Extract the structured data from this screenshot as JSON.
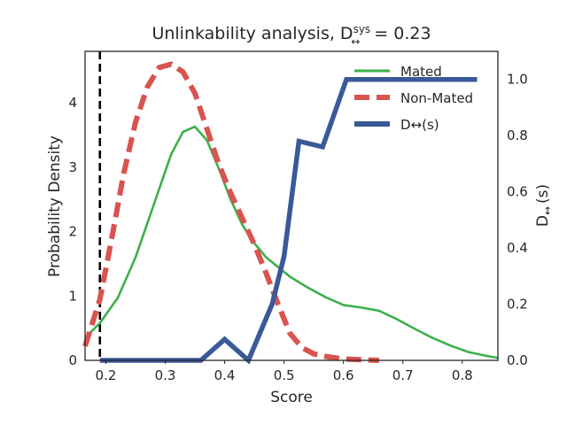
{
  "chart_data": {
    "type": "line",
    "title": {
      "prefix": "Unlinkability analysis, D",
      "superscript": "sys",
      "subscript": "↔",
      "suffix": " = 0.23"
    },
    "xlabel": "Score",
    "ylabel_left": "Probability Density",
    "ylabel_right": {
      "base": "D",
      "subscript": "↔",
      "suffix": "(s)"
    },
    "xlim": [
      0.165,
      0.86
    ],
    "ylim_left": [
      0,
      4.8
    ],
    "ylim_right": [
      0,
      1.1
    ],
    "xticks": [
      "0.2",
      "0.3",
      "0.4",
      "0.5",
      "0.6",
      "0.7",
      "0.8"
    ],
    "yticks_left": [
      "0",
      "1",
      "2",
      "3",
      "4"
    ],
    "yticks_right": [
      "0.0",
      "0.2",
      "0.4",
      "0.6",
      "0.8",
      "1.0"
    ],
    "grid": false,
    "legend_position": "top-right",
    "threshold_line": {
      "x": 0.19,
      "color": "#000000",
      "style": "dashed"
    },
    "series": [
      {
        "name": "Mated",
        "axis": "left",
        "color": "#3cb04a",
        "style": "solid",
        "x": [
          0.165,
          0.19,
          0.22,
          0.25,
          0.28,
          0.31,
          0.33,
          0.35,
          0.37,
          0.39,
          0.41,
          0.43,
          0.45,
          0.47,
          0.49,
          0.51,
          0.54,
          0.57,
          0.6,
          0.63,
          0.66,
          0.69,
          0.72,
          0.75,
          0.78,
          0.81,
          0.84,
          0.86
        ],
        "values": [
          0.35,
          0.58,
          0.97,
          1.6,
          2.4,
          3.2,
          3.55,
          3.63,
          3.42,
          2.98,
          2.5,
          2.1,
          1.82,
          1.6,
          1.45,
          1.3,
          1.13,
          0.98,
          0.86,
          0.82,
          0.77,
          0.64,
          0.49,
          0.35,
          0.23,
          0.13,
          0.07,
          0.04
        ]
      },
      {
        "name": "Non-Mated",
        "axis": "left",
        "color": "#d9534f",
        "style": "dashed",
        "x": [
          0.165,
          0.19,
          0.21,
          0.23,
          0.25,
          0.27,
          0.29,
          0.31,
          0.33,
          0.35,
          0.37,
          0.39,
          0.41,
          0.43,
          0.45,
          0.47,
          0.49,
          0.51,
          0.53,
          0.55,
          0.57,
          0.6,
          0.63,
          0.66
        ],
        "values": [
          0.22,
          0.95,
          1.9,
          2.9,
          3.7,
          4.25,
          4.55,
          4.6,
          4.48,
          4.15,
          3.6,
          3.05,
          2.6,
          2.2,
          1.8,
          1.35,
          0.87,
          0.42,
          0.2,
          0.1,
          0.06,
          0.02,
          0.01,
          0.0
        ]
      },
      {
        "name": "D↔(s)",
        "axis": "right",
        "color": "#3a5998",
        "style": "solid",
        "x": [
          0.19,
          0.36,
          0.4,
          0.44,
          0.48,
          0.5,
          0.525,
          0.565,
          0.605,
          0.825
        ],
        "values": [
          0.0,
          0.0,
          0.075,
          0.0,
          0.2,
          0.37,
          0.78,
          0.76,
          1.0,
          1.0
        ]
      }
    ]
  }
}
